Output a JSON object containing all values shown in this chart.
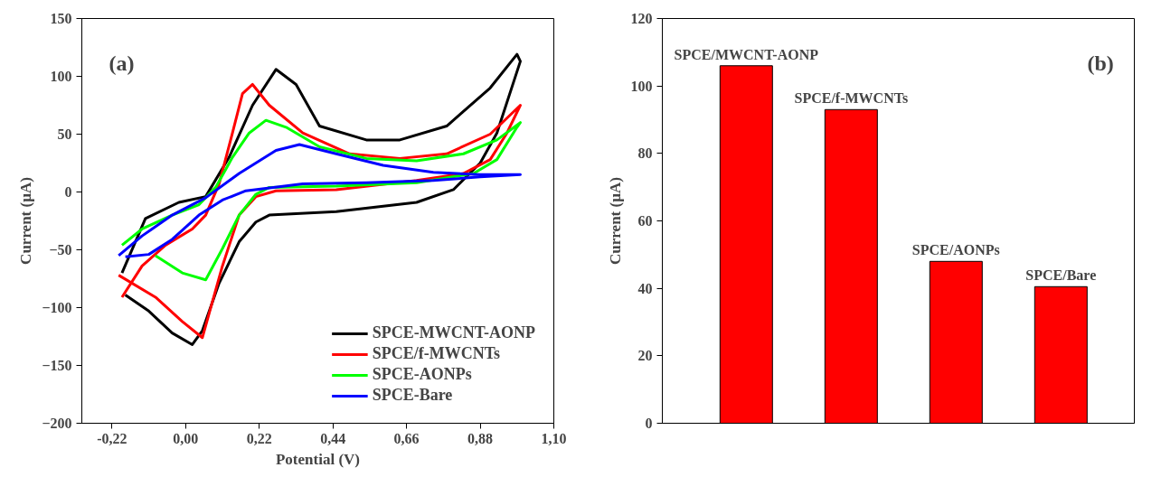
{
  "chart_data": [
    {
      "type": "line",
      "xlabel": "Potential (V)",
      "ylabel": "Current (µA)",
      "annotations": [
        "(a)"
      ],
      "xlim": [
        -0.31,
        1.1
      ],
      "xticks": [
        {
          "value": -0.22,
          "label": "-0,22"
        },
        {
          "value": 0.0,
          "label": "0,00"
        },
        {
          "value": 0.22,
          "label": "0,22"
        },
        {
          "value": 0.44,
          "label": "0,44"
        },
        {
          "value": 0.66,
          "label": "0,66"
        },
        {
          "value": 0.88,
          "label": "0,88"
        },
        {
          "value": 1.1,
          "label": "1,10"
        }
      ],
      "ylim": [
        -200,
        150
      ],
      "yticks": [
        -200,
        -150,
        -100,
        -50,
        0,
        50,
        100,
        150
      ],
      "grid": false,
      "legend": "bottom right",
      "line_style": "solid",
      "marker": "none",
      "series": [
        {
          "name": "SPCE-MWCNT-AONP",
          "color": "#000000",
          "x": [
            -0.19,
            -0.12,
            -0.02,
            0.06,
            0.13,
            0.2,
            0.27,
            0.33,
            0.4,
            0.54,
            0.64,
            0.78,
            0.91,
            0.99,
            1.0,
            0.93,
            0.88,
            0.8,
            0.69,
            0.45,
            0.25,
            0.21,
            0.16,
            0.1,
            0.05,
            0.02,
            -0.04,
            -0.11,
            -0.18
          ],
          "values": [
            -70,
            -23,
            -9,
            -4,
            30,
            75,
            106,
            93,
            57,
            45,
            45,
            57,
            90,
            119,
            113,
            51,
            25,
            2,
            -9,
            -17,
            -20,
            -26,
            -43,
            -79,
            -120,
            -132,
            -122,
            -103,
            -89
          ]
        },
        {
          "name": "SPCE/f-MWCNTs",
          "color": "#ff0000",
          "x": [
            -0.19,
            -0.13,
            -0.06,
            0.02,
            0.06,
            0.1,
            0.14,
            0.17,
            0.2,
            0.25,
            0.35,
            0.49,
            0.64,
            0.78,
            0.91,
            1.0,
            0.96,
            0.91,
            0.83,
            0.69,
            0.45,
            0.27,
            0.21,
            0.16,
            0.11,
            0.05,
            -0.01,
            -0.09,
            -0.2
          ],
          "values": [
            -91,
            -64,
            -46,
            -32,
            -20,
            7,
            51,
            85,
            93,
            75,
            51,
            33,
            29,
            33,
            50,
            75,
            51,
            28,
            16,
            10,
            2,
            1,
            -4,
            -20,
            -64,
            -126,
            -112,
            -91,
            -72
          ]
        },
        {
          "name": "SPCE-AONPs",
          "color": "#00ff00",
          "x": [
            -0.19,
            -0.13,
            -0.04,
            0.04,
            0.09,
            0.14,
            0.19,
            0.24,
            0.3,
            0.4,
            0.54,
            0.69,
            0.83,
            0.93,
            1.0,
            0.99,
            0.93,
            0.86,
            0.69,
            0.45,
            0.25,
            0.21,
            0.16,
            0.11,
            0.06,
            -0.01,
            -0.09
          ],
          "values": [
            -46,
            -32,
            -20,
            -11,
            4,
            30,
            51,
            62,
            56,
            39,
            29,
            27,
            33,
            45,
            60,
            56,
            28,
            16,
            8,
            5,
            4,
            -2,
            -20,
            -49,
            -76,
            -70,
            -55
          ]
        },
        {
          "name": "SPCE-Bare",
          "color": "#0000ff",
          "x": [
            -0.2,
            -0.13,
            -0.04,
            0.06,
            0.16,
            0.27,
            0.34,
            0.45,
            0.59,
            0.74,
            0.88,
            1.0,
            0.88,
            0.74,
            0.54,
            0.35,
            0.18,
            0.11,
            0.04,
            -0.04,
            -0.11,
            -0.18
          ],
          "values": [
            -55,
            -38,
            -20,
            -5,
            16,
            36,
            41,
            33,
            23,
            17,
            15,
            15,
            13,
            10,
            8,
            7,
            1,
            -7,
            -20,
            -41,
            -54,
            -56
          ]
        }
      ]
    },
    {
      "type": "bar",
      "ylabel": "Current (µA)",
      "annotations": [
        "(b)"
      ],
      "categories": [
        "SPCE/MWCNT-AONP",
        "SPCE/f-MWCNTs",
        "SPCE/AONPs",
        "SPCE/Bare"
      ],
      "values": [
        106,
        93,
        48,
        40.5
      ],
      "color": "#ff0000",
      "ylim": [
        0,
        120
      ],
      "yticks": [
        0,
        20,
        40,
        60,
        80,
        100,
        120
      ],
      "grid": false,
      "tick_labels": "y"
    }
  ]
}
